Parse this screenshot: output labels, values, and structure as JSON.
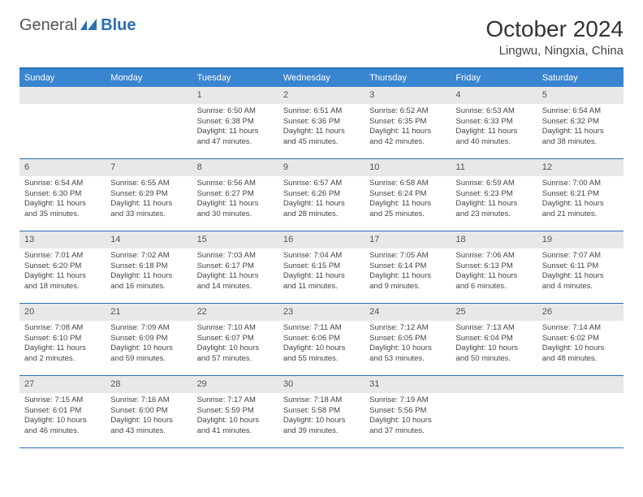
{
  "brand": {
    "part1": "General",
    "part2": "Blue"
  },
  "title": "October 2024",
  "location": "Lingwu, Ningxia, China",
  "colors": {
    "header_bar": "#3a85d0",
    "rule": "#2a6fb5",
    "daynum_bg": "#e8e8e8",
    "text": "#333333",
    "muted": "#555555"
  },
  "dows": [
    "Sunday",
    "Monday",
    "Tuesday",
    "Wednesday",
    "Thursday",
    "Friday",
    "Saturday"
  ],
  "weeks": [
    [
      null,
      null,
      {
        "n": "1",
        "sr": "6:50 AM",
        "ss": "6:38 PM",
        "dl": "11 hours and 47 minutes."
      },
      {
        "n": "2",
        "sr": "6:51 AM",
        "ss": "6:36 PM",
        "dl": "11 hours and 45 minutes."
      },
      {
        "n": "3",
        "sr": "6:52 AM",
        "ss": "6:35 PM",
        "dl": "11 hours and 42 minutes."
      },
      {
        "n": "4",
        "sr": "6:53 AM",
        "ss": "6:33 PM",
        "dl": "11 hours and 40 minutes."
      },
      {
        "n": "5",
        "sr": "6:54 AM",
        "ss": "6:32 PM",
        "dl": "11 hours and 38 minutes."
      }
    ],
    [
      {
        "n": "6",
        "sr": "6:54 AM",
        "ss": "6:30 PM",
        "dl": "11 hours and 35 minutes."
      },
      {
        "n": "7",
        "sr": "6:55 AM",
        "ss": "6:29 PM",
        "dl": "11 hours and 33 minutes."
      },
      {
        "n": "8",
        "sr": "6:56 AM",
        "ss": "6:27 PM",
        "dl": "11 hours and 30 minutes."
      },
      {
        "n": "9",
        "sr": "6:57 AM",
        "ss": "6:26 PM",
        "dl": "11 hours and 28 minutes."
      },
      {
        "n": "10",
        "sr": "6:58 AM",
        "ss": "6:24 PM",
        "dl": "11 hours and 25 minutes."
      },
      {
        "n": "11",
        "sr": "6:59 AM",
        "ss": "6:23 PM",
        "dl": "11 hours and 23 minutes."
      },
      {
        "n": "12",
        "sr": "7:00 AM",
        "ss": "6:21 PM",
        "dl": "11 hours and 21 minutes."
      }
    ],
    [
      {
        "n": "13",
        "sr": "7:01 AM",
        "ss": "6:20 PM",
        "dl": "11 hours and 18 minutes."
      },
      {
        "n": "14",
        "sr": "7:02 AM",
        "ss": "6:18 PM",
        "dl": "11 hours and 16 minutes."
      },
      {
        "n": "15",
        "sr": "7:03 AM",
        "ss": "6:17 PM",
        "dl": "11 hours and 14 minutes."
      },
      {
        "n": "16",
        "sr": "7:04 AM",
        "ss": "6:15 PM",
        "dl": "11 hours and 11 minutes."
      },
      {
        "n": "17",
        "sr": "7:05 AM",
        "ss": "6:14 PM",
        "dl": "11 hours and 9 minutes."
      },
      {
        "n": "18",
        "sr": "7:06 AM",
        "ss": "6:13 PM",
        "dl": "11 hours and 6 minutes."
      },
      {
        "n": "19",
        "sr": "7:07 AM",
        "ss": "6:11 PM",
        "dl": "11 hours and 4 minutes."
      }
    ],
    [
      {
        "n": "20",
        "sr": "7:08 AM",
        "ss": "6:10 PM",
        "dl": "11 hours and 2 minutes."
      },
      {
        "n": "21",
        "sr": "7:09 AM",
        "ss": "6:09 PM",
        "dl": "10 hours and 59 minutes."
      },
      {
        "n": "22",
        "sr": "7:10 AM",
        "ss": "6:07 PM",
        "dl": "10 hours and 57 minutes."
      },
      {
        "n": "23",
        "sr": "7:11 AM",
        "ss": "6:06 PM",
        "dl": "10 hours and 55 minutes."
      },
      {
        "n": "24",
        "sr": "7:12 AM",
        "ss": "6:05 PM",
        "dl": "10 hours and 53 minutes."
      },
      {
        "n": "25",
        "sr": "7:13 AM",
        "ss": "6:04 PM",
        "dl": "10 hours and 50 minutes."
      },
      {
        "n": "26",
        "sr": "7:14 AM",
        "ss": "6:02 PM",
        "dl": "10 hours and 48 minutes."
      }
    ],
    [
      {
        "n": "27",
        "sr": "7:15 AM",
        "ss": "6:01 PM",
        "dl": "10 hours and 46 minutes."
      },
      {
        "n": "28",
        "sr": "7:16 AM",
        "ss": "6:00 PM",
        "dl": "10 hours and 43 minutes."
      },
      {
        "n": "29",
        "sr": "7:17 AM",
        "ss": "5:59 PM",
        "dl": "10 hours and 41 minutes."
      },
      {
        "n": "30",
        "sr": "7:18 AM",
        "ss": "5:58 PM",
        "dl": "10 hours and 39 minutes."
      },
      {
        "n": "31",
        "sr": "7:19 AM",
        "ss": "5:56 PM",
        "dl": "10 hours and 37 minutes."
      },
      null,
      null
    ]
  ],
  "labels": {
    "sunrise": "Sunrise:",
    "sunset": "Sunset:",
    "daylight": "Daylight:"
  }
}
